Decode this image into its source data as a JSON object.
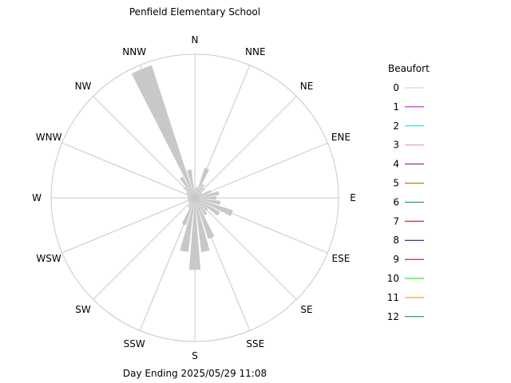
{
  "chart_data": {
    "type": "wind-rose",
    "title": "Penfield Elementary School",
    "footer": "Day Ending 2025/05/29 11:08",
    "directions": [
      "N",
      "NNE",
      "NE",
      "ENE",
      "E",
      "ESE",
      "SE",
      "SSE",
      "S",
      "SSW",
      "SW",
      "WSW",
      "W",
      "WNW",
      "NW",
      "NNW"
    ],
    "grid": true,
    "legend_position": "right",
    "legend": {
      "title": "Beaufort",
      "items": [
        {
          "label": "0",
          "color": "#c8c8c8"
        },
        {
          "label": "1",
          "color": "#c000c0"
        },
        {
          "label": "2",
          "color": "#00e0e0"
        },
        {
          "label": "3",
          "color": "#e080c0"
        },
        {
          "label": "4",
          "color": "#800080"
        },
        {
          "label": "5",
          "color": "#a07000"
        },
        {
          "label": "6",
          "color": "#008080"
        },
        {
          "label": "7",
          "color": "#a00000"
        },
        {
          "label": "8",
          "color": "#000080"
        },
        {
          "label": "9",
          "color": "#900000"
        },
        {
          "label": "10",
          "color": "#00e000"
        },
        {
          "label": "11",
          "color": "#e09000"
        },
        {
          "label": "12",
          "color": "#008080"
        }
      ]
    },
    "bar_color": "#c8c8c8",
    "bars": [
      {
        "bearing": 0,
        "value": 0.06
      },
      {
        "bearing": 11.25,
        "value": 0.08
      },
      {
        "bearing": 22.5,
        "value": 0.22
      },
      {
        "bearing": 33.75,
        "value": 0.11
      },
      {
        "bearing": 45,
        "value": 0.09
      },
      {
        "bearing": 56.25,
        "value": 0.06
      },
      {
        "bearing": 67.5,
        "value": 0.12
      },
      {
        "bearing": 78.75,
        "value": 0.17
      },
      {
        "bearing": 90,
        "value": 0.15
      },
      {
        "bearing": 101.25,
        "value": 0.18
      },
      {
        "bearing": 112.5,
        "value": 0.28
      },
      {
        "bearing": 123.75,
        "value": 0.2
      },
      {
        "bearing": 135,
        "value": 0.12
      },
      {
        "bearing": 146.25,
        "value": 0.14
      },
      {
        "bearing": 157.5,
        "value": 0.3
      },
      {
        "bearing": 168.75,
        "value": 0.38
      },
      {
        "bearing": 180,
        "value": 0.5
      },
      {
        "bearing": 191.25,
        "value": 0.38
      },
      {
        "bearing": 202.5,
        "value": 0.2
      },
      {
        "bearing": 213.75,
        "value": 0.08
      },
      {
        "bearing": 225,
        "value": 0.06
      },
      {
        "bearing": 236.25,
        "value": 0.05
      },
      {
        "bearing": 247.5,
        "value": 0.06
      },
      {
        "bearing": 258.75,
        "value": 0.05
      },
      {
        "bearing": 270,
        "value": 0.05
      },
      {
        "bearing": 281.25,
        "value": 0.05
      },
      {
        "bearing": 292.5,
        "value": 0.06
      },
      {
        "bearing": 303.75,
        "value": 0.07
      },
      {
        "bearing": 315,
        "value": 0.1
      },
      {
        "bearing": 326.25,
        "value": 0.17
      },
      {
        "bearing": 337.5,
        "value": 0.97
      },
      {
        "bearing": 348.75,
        "value": 0.2
      }
    ]
  }
}
